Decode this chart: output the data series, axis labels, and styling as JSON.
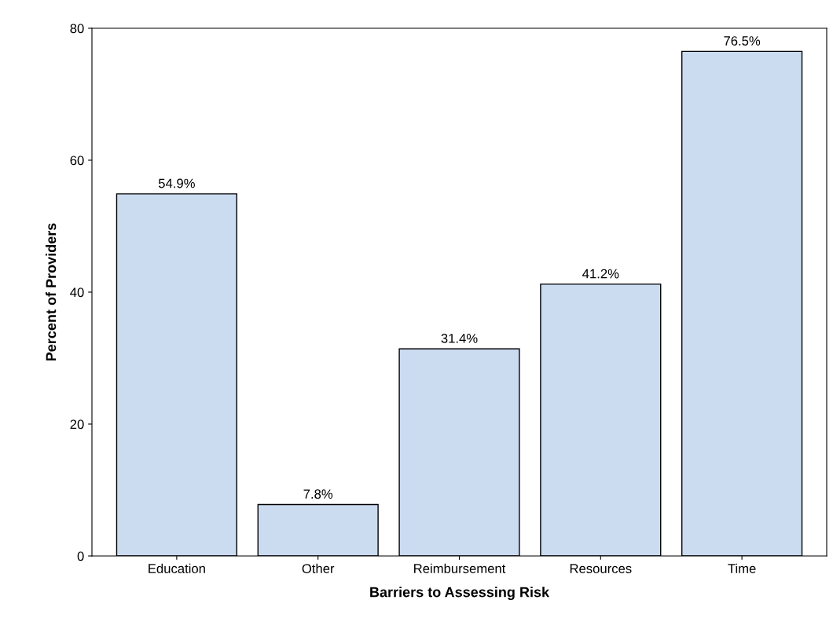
{
  "chart_data": {
    "type": "bar",
    "xlabel": "Barriers to Assessing Risk",
    "ylabel": "Percent of Providers",
    "categories": [
      "Education",
      "Other",
      "Reimbursement",
      "Resources",
      "Time"
    ],
    "values": [
      54.9,
      7.8,
      31.4,
      41.2,
      76.5
    ],
    "value_labels": [
      "54.9%",
      "7.8%",
      "31.4%",
      "41.2%",
      "76.5%"
    ],
    "color": "#cbdbf0",
    "ylim": [
      0,
      80
    ],
    "yticks": [
      0,
      20,
      40,
      60,
      80
    ],
    "grid": false,
    "legend": false
  }
}
